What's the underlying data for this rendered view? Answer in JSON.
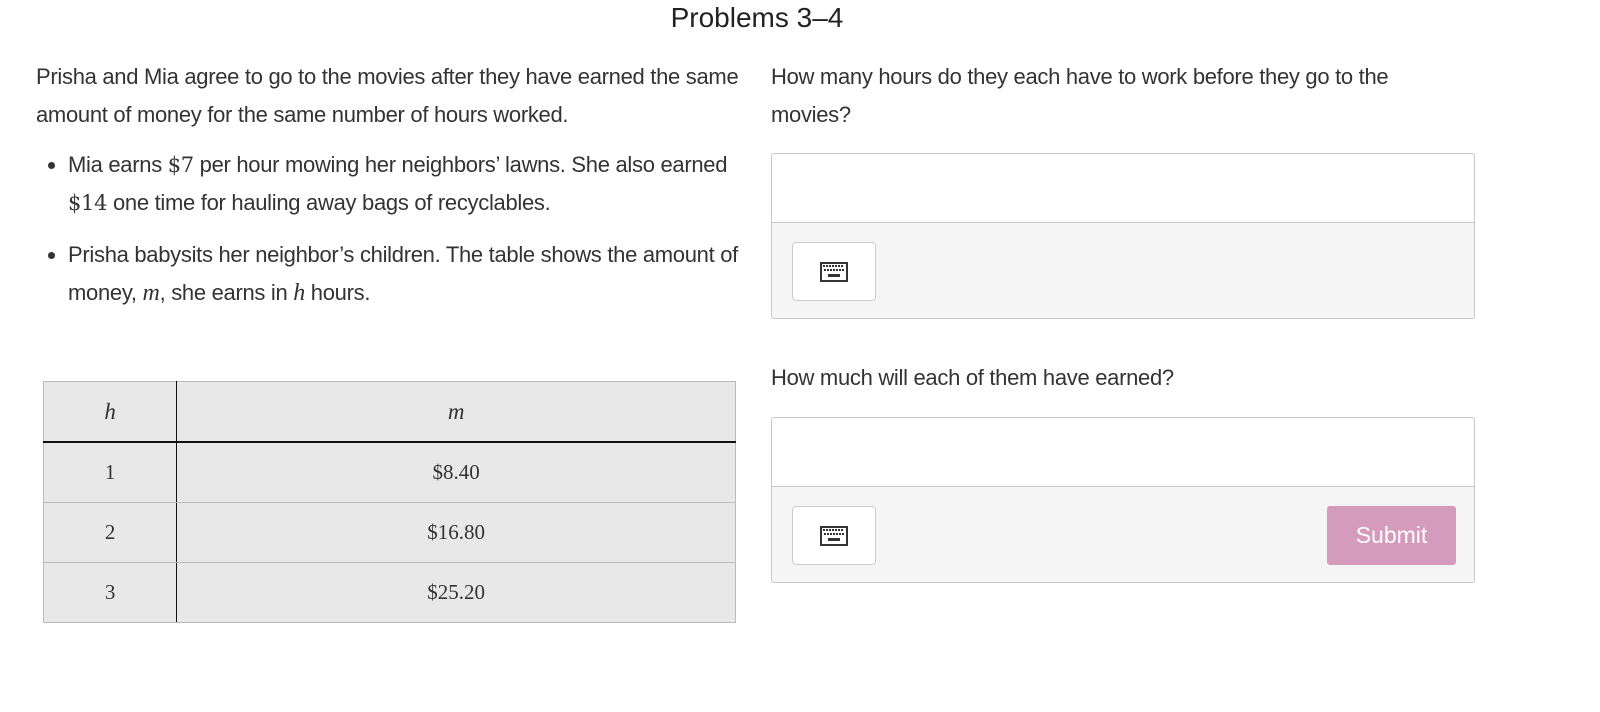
{
  "title": "Problems 3–4",
  "intro": "Prisha and Mia agree to go to the movies after they have earned the same amount of money for the same number of hours worked.",
  "bullets": [
    {
      "pre": "Mia earns ",
      "m1": "$7",
      "mid": " per hour mowing her neighbors’ lawns. She also earned ",
      "m2": "$14",
      "post": " one time for hauling away bags of recyclables."
    },
    {
      "pre": "Prisha babysits her neighbor’s children. The table shows the amount of money, ",
      "m1": "m",
      "mid": ", she earns in ",
      "m2": "h",
      "post": " hours."
    }
  ],
  "table": {
    "headers": [
      "h",
      "m"
    ],
    "rows": [
      [
        "1",
        "$8.40"
      ],
      [
        "2",
        "$16.80"
      ],
      [
        "3",
        "$25.20"
      ]
    ]
  },
  "questions": [
    {
      "text": "How many hours do they each have to work before they go to the movies?",
      "value": "",
      "keyboard_icon": "keyboard-icon"
    },
    {
      "text": "How much will each of them have earned?",
      "value": "",
      "keyboard_icon": "keyboard-icon"
    }
  ],
  "submit_label": "Submit",
  "colors": {
    "submit": "#d49bbd",
    "panel": "#f5f5f5",
    "table_bg": "#e8e8e8"
  }
}
